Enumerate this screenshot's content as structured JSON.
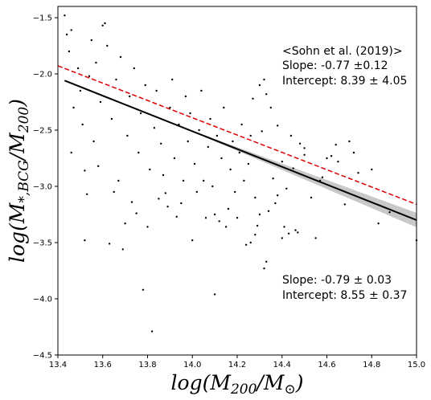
{
  "chart_data": {
    "type": "scatter",
    "xlabel_parts": [
      "log(M",
      "200",
      "/M",
      "⊙",
      ")"
    ],
    "ylabel_parts": [
      "log(M",
      "*,BCG",
      "/M",
      "200",
      ")"
    ],
    "xlim": [
      13.4,
      15.0
    ],
    "ylim": [
      -4.5,
      -1.4
    ],
    "xticks": [
      13.4,
      13.6,
      13.8,
      14.0,
      14.2,
      14.4,
      14.6,
      14.8,
      15.0
    ],
    "xtick_labels": [
      "13.4",
      "13.6",
      "13.8",
      "14.0",
      "14.2",
      "14.4",
      "14.6",
      "14.8",
      "15.0"
    ],
    "yticks": [
      -4.5,
      -4.0,
      -3.5,
      -3.0,
      -2.5,
      -2.0,
      -1.5
    ],
    "ytick_labels": [
      "−4.5",
      "−4.0",
      "−3.5",
      "−3.0",
      "−2.5",
      "−2.0",
      "−1.5"
    ],
    "grid": false,
    "scatter_color": "#000000",
    "fit_color": "#000000",
    "fit_band_color": "#c8c8c8",
    "reference_color": "#dd0000",
    "fit_line": {
      "slope": -0.79,
      "intercept": 8.55,
      "x_range": [
        13.43,
        15.0
      ]
    },
    "reference_line": {
      "slope": -0.77,
      "intercept": 8.39,
      "x_range": [
        13.4,
        15.0
      ]
    },
    "annotations": {
      "reference_title": "<Sohn et al. (2019)>",
      "reference_slope": "Slope: -0.77 ±0.12",
      "reference_intercept": "Intercept: 8.39 ± 4.05",
      "fit_slope": "Slope: -0.79 ± 0.03",
      "fit_intercept": "Intercept: 8.55 ± 0.37"
    },
    "points": [
      [
        13.43,
        -1.48
      ],
      [
        13.44,
        -1.65
      ],
      [
        13.46,
        -1.61
      ],
      [
        13.46,
        -2.7
      ],
      [
        13.52,
        -2.86
      ],
      [
        13.52,
        -3.48
      ],
      [
        13.53,
        -3.07
      ],
      [
        13.6,
        -1.57
      ],
      [
        13.61,
        -1.55
      ],
      [
        13.63,
        -3.51
      ],
      [
        13.65,
        -3.05
      ],
      [
        13.69,
        -3.56
      ],
      [
        13.7,
        -3.33
      ],
      [
        13.73,
        -3.14
      ],
      [
        13.75,
        -3.24
      ],
      [
        13.78,
        -3.92
      ],
      [
        13.8,
        -3.36
      ],
      [
        13.82,
        -4.29
      ],
      [
        13.85,
        -3.11
      ],
      [
        13.88,
        -3.06
      ],
      [
        13.89,
        -3.18
      ],
      [
        13.93,
        -3.27
      ],
      [
        13.95,
        -3.15
      ],
      [
        14.0,
        -3.48
      ],
      [
        14.02,
        -3.05
      ],
      [
        14.06,
        -3.28
      ],
      [
        14.1,
        -3.96
      ],
      [
        14.1,
        -3.25
      ],
      [
        14.12,
        -3.31
      ],
      [
        14.15,
        -3.36
      ],
      [
        14.16,
        -3.2
      ],
      [
        14.2,
        -3.28
      ],
      [
        14.24,
        -3.52
      ],
      [
        14.26,
        -3.5
      ],
      [
        14.28,
        -3.43
      ],
      [
        14.3,
        -3.25
      ],
      [
        14.32,
        -3.73
      ],
      [
        14.33,
        -3.67
      ],
      [
        14.38,
        -3.08
      ],
      [
        14.4,
        -3.46
      ],
      [
        14.41,
        -3.36
      ],
      [
        14.43,
        -3.42
      ],
      [
        14.46,
        -3.39
      ],
      [
        14.47,
        -3.41
      ],
      [
        14.55,
        -3.46
      ],
      [
        14.53,
        -3.1
      ],
      [
        14.58,
        -2.92
      ],
      [
        14.62,
        -2.73
      ],
      [
        14.65,
        -2.78
      ],
      [
        14.68,
        -3.16
      ],
      [
        14.7,
        -2.6
      ],
      [
        14.74,
        -2.88
      ],
      [
        14.8,
        -2.85
      ],
      [
        14.83,
        -3.33
      ],
      [
        14.88,
        -3.23
      ],
      [
        15.0,
        -3.48
      ],
      [
        14.32,
        -2.05
      ],
      [
        14.35,
        -2.3
      ],
      [
        14.38,
        -2.46
      ],
      [
        14.44,
        -2.55
      ],
      [
        14.4,
        -2.78
      ],
      [
        14.36,
        -2.93
      ],
      [
        14.48,
        -2.62
      ],
      [
        14.5,
        -2.66
      ],
      [
        14.6,
        -2.75
      ],
      [
        14.64,
        -2.63
      ],
      [
        14.72,
        -2.7
      ],
      [
        14.3,
        -2.1
      ],
      [
        14.27,
        -2.22
      ],
      [
        14.33,
        -2.18
      ],
      [
        14.31,
        -2.51
      ],
      [
        14.5,
        -2.72
      ],
      [
        14.57,
        -2.95
      ],
      [
        14.45,
        -2.84
      ],
      [
        14.42,
        -3.02
      ],
      [
        14.37,
        -3.15
      ],
      [
        14.34,
        -3.22
      ],
      [
        14.29,
        -3.35
      ],
      [
        13.45,
        -1.8
      ],
      [
        13.47,
        -2.3
      ],
      [
        13.49,
        -1.95
      ],
      [
        13.5,
        -2.15
      ],
      [
        13.51,
        -2.45
      ],
      [
        13.54,
        -2.02
      ],
      [
        13.55,
        -1.7
      ],
      [
        13.56,
        -2.6
      ],
      [
        13.57,
        -1.9
      ],
      [
        13.58,
        -2.82
      ],
      [
        13.59,
        -2.25
      ],
      [
        13.62,
        -1.75
      ],
      [
        13.64,
        -2.4
      ],
      [
        13.66,
        -2.05
      ],
      [
        13.67,
        -2.95
      ],
      [
        13.68,
        -1.85
      ],
      [
        13.71,
        -2.55
      ],
      [
        13.72,
        -2.2
      ],
      [
        13.74,
        -1.95
      ],
      [
        13.76,
        -2.7
      ],
      [
        13.77,
        -2.35
      ],
      [
        13.79,
        -2.1
      ],
      [
        13.81,
        -2.85
      ],
      [
        13.83,
        -2.48
      ],
      [
        13.84,
        -2.15
      ],
      [
        13.86,
        -2.62
      ],
      [
        13.87,
        -2.9
      ],
      [
        13.9,
        -2.3
      ],
      [
        13.91,
        -2.05
      ],
      [
        13.92,
        -2.75
      ],
      [
        13.94,
        -2.45
      ],
      [
        13.96,
        -2.95
      ],
      [
        13.97,
        -2.2
      ],
      [
        13.98,
        -2.6
      ],
      [
        13.99,
        -2.35
      ],
      [
        14.01,
        -2.8
      ],
      [
        14.03,
        -2.5
      ],
      [
        14.04,
        -2.15
      ],
      [
        14.05,
        -2.95
      ],
      [
        14.07,
        -2.65
      ],
      [
        14.08,
        -2.4
      ],
      [
        14.09,
        -3.0
      ],
      [
        14.11,
        -2.55
      ],
      [
        14.13,
        -2.75
      ],
      [
        14.14,
        -2.3
      ],
      [
        14.17,
        -2.85
      ],
      [
        14.18,
        -2.6
      ],
      [
        14.19,
        -3.05
      ],
      [
        14.21,
        -2.7
      ],
      [
        14.22,
        -2.45
      ],
      [
        14.23,
        -2.95
      ],
      [
        14.25,
        -2.8
      ],
      [
        14.26,
        -2.55
      ],
      [
        14.28,
        -3.1
      ]
    ]
  }
}
